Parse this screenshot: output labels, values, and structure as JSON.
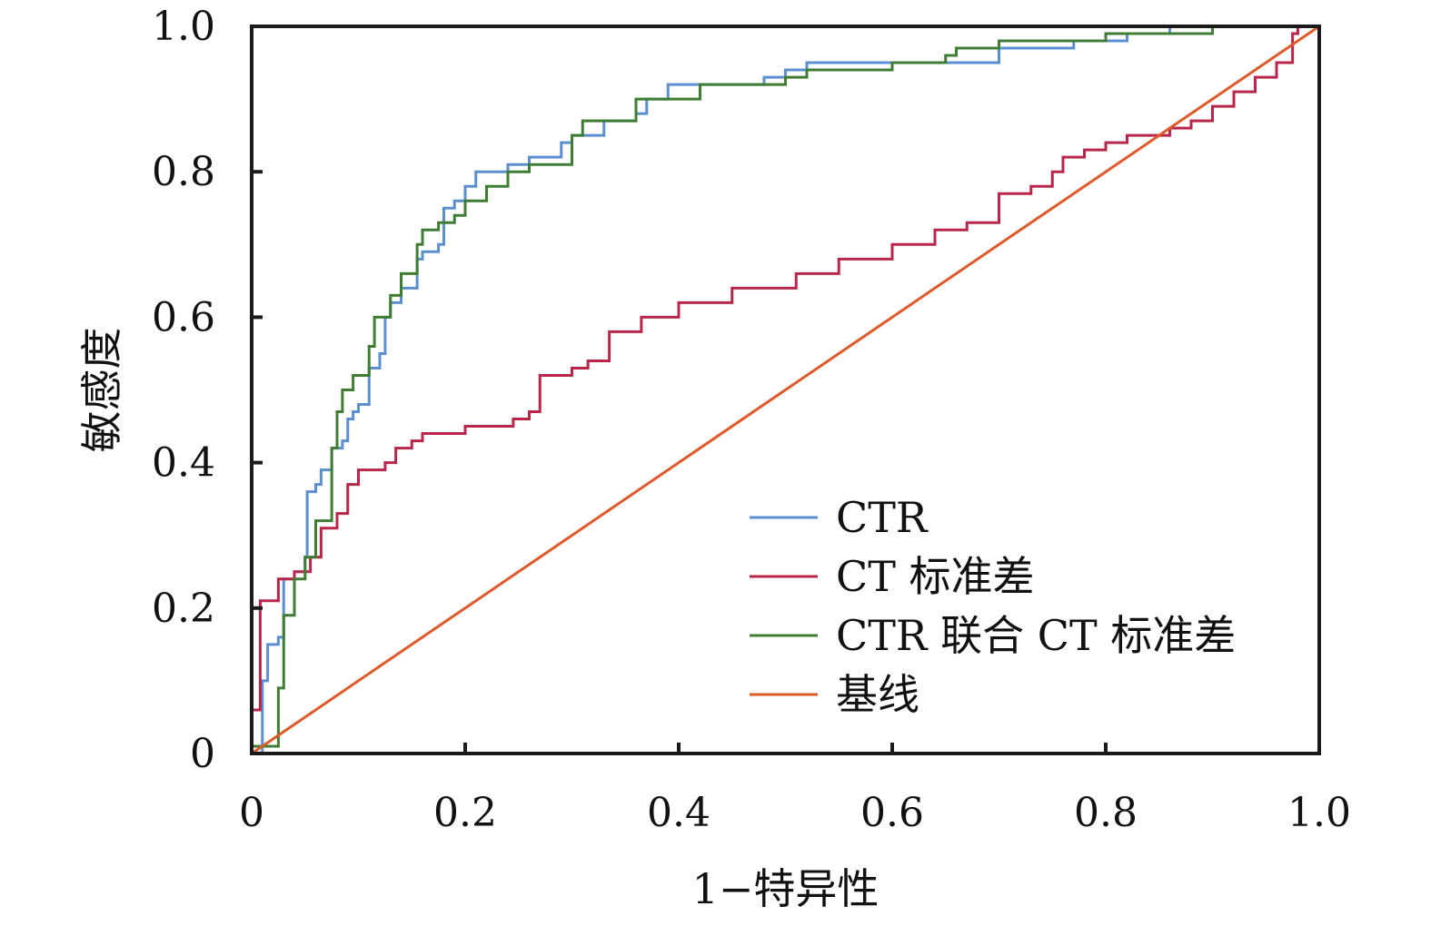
{
  "chart_data": {
    "type": "line",
    "title": "",
    "xlabel": "1−特异性",
    "ylabel": "敏感度",
    "xlim": [
      0,
      1
    ],
    "ylim": [
      0,
      1
    ],
    "grid": false,
    "legend_position": "bottom-right",
    "x_ticks": [
      "0",
      "0.2",
      "0.4",
      "0.6",
      "0.8",
      "1.0"
    ],
    "y_ticks": [
      "0",
      "0.2",
      "0.4",
      "0.6",
      "0.8",
      "1.0"
    ],
    "series": [
      {
        "name": "CTR",
        "color": "#5b8fd0",
        "points": [
          [
            0,
            0
          ],
          [
            0.01,
            0.1
          ],
          [
            0.015,
            0.15
          ],
          [
            0.025,
            0.16
          ],
          [
            0.03,
            0.24
          ],
          [
            0.04,
            0.25
          ],
          [
            0.05,
            0.27
          ],
          [
            0.052,
            0.36
          ],
          [
            0.06,
            0.37
          ],
          [
            0.065,
            0.39
          ],
          [
            0.07,
            0.39
          ],
          [
            0.075,
            0.42
          ],
          [
            0.085,
            0.43
          ],
          [
            0.09,
            0.46
          ],
          [
            0.095,
            0.47
          ],
          [
            0.1,
            0.48
          ],
          [
            0.11,
            0.53
          ],
          [
            0.12,
            0.55
          ],
          [
            0.125,
            0.6
          ],
          [
            0.13,
            0.62
          ],
          [
            0.14,
            0.64
          ],
          [
            0.155,
            0.68
          ],
          [
            0.16,
            0.69
          ],
          [
            0.175,
            0.7
          ],
          [
            0.18,
            0.75
          ],
          [
            0.19,
            0.76
          ],
          [
            0.2,
            0.78
          ],
          [
            0.21,
            0.8
          ],
          [
            0.24,
            0.81
          ],
          [
            0.26,
            0.82
          ],
          [
            0.29,
            0.84
          ],
          [
            0.3,
            0.85
          ],
          [
            0.33,
            0.87
          ],
          [
            0.36,
            0.88
          ],
          [
            0.37,
            0.9
          ],
          [
            0.39,
            0.92
          ],
          [
            0.48,
            0.93
          ],
          [
            0.5,
            0.94
          ],
          [
            0.52,
            0.95
          ],
          [
            0.65,
            0.95
          ],
          [
            0.7,
            0.97
          ],
          [
            0.77,
            0.98
          ],
          [
            0.82,
            0.99
          ],
          [
            0.86,
            1.0
          ],
          [
            1,
            1
          ]
        ]
      },
      {
        "name": "CT 标准差",
        "color": "#b8264a",
        "points": [
          [
            0,
            0
          ],
          [
            0,
            0.06
          ],
          [
            0.008,
            0.21
          ],
          [
            0.025,
            0.24
          ],
          [
            0.04,
            0.25
          ],
          [
            0.055,
            0.27
          ],
          [
            0.065,
            0.31
          ],
          [
            0.08,
            0.33
          ],
          [
            0.09,
            0.37
          ],
          [
            0.1,
            0.39
          ],
          [
            0.125,
            0.4
          ],
          [
            0.135,
            0.42
          ],
          [
            0.15,
            0.43
          ],
          [
            0.16,
            0.44
          ],
          [
            0.2,
            0.45
          ],
          [
            0.245,
            0.46
          ],
          [
            0.26,
            0.47
          ],
          [
            0.27,
            0.52
          ],
          [
            0.3,
            0.53
          ],
          [
            0.315,
            0.54
          ],
          [
            0.335,
            0.58
          ],
          [
            0.365,
            0.6
          ],
          [
            0.4,
            0.62
          ],
          [
            0.45,
            0.64
          ],
          [
            0.51,
            0.66
          ],
          [
            0.55,
            0.68
          ],
          [
            0.6,
            0.7
          ],
          [
            0.64,
            0.72
          ],
          [
            0.67,
            0.73
          ],
          [
            0.7,
            0.77
          ],
          [
            0.73,
            0.78
          ],
          [
            0.75,
            0.8
          ],
          [
            0.76,
            0.82
          ],
          [
            0.78,
            0.83
          ],
          [
            0.8,
            0.84
          ],
          [
            0.82,
            0.85
          ],
          [
            0.86,
            0.86
          ],
          [
            0.88,
            0.87
          ],
          [
            0.9,
            0.89
          ],
          [
            0.92,
            0.91
          ],
          [
            0.94,
            0.93
          ],
          [
            0.96,
            0.95
          ],
          [
            0.975,
            0.99
          ],
          [
            0.98,
            1.0
          ],
          [
            1,
            1
          ]
        ]
      },
      {
        "name": "CTR 联合 CT 标准差",
        "color": "#3f7d33",
        "points": [
          [
            0,
            0
          ],
          [
            0,
            0.01
          ],
          [
            0.02,
            0.01
          ],
          [
            0.025,
            0.09
          ],
          [
            0.03,
            0.19
          ],
          [
            0.04,
            0.24
          ],
          [
            0.05,
            0.27
          ],
          [
            0.06,
            0.32
          ],
          [
            0.07,
            0.32
          ],
          [
            0.075,
            0.42
          ],
          [
            0.08,
            0.47
          ],
          [
            0.085,
            0.5
          ],
          [
            0.095,
            0.52
          ],
          [
            0.11,
            0.56
          ],
          [
            0.115,
            0.6
          ],
          [
            0.13,
            0.63
          ],
          [
            0.14,
            0.66
          ],
          [
            0.155,
            0.7
          ],
          [
            0.16,
            0.72
          ],
          [
            0.175,
            0.73
          ],
          [
            0.19,
            0.74
          ],
          [
            0.2,
            0.76
          ],
          [
            0.22,
            0.78
          ],
          [
            0.24,
            0.8
          ],
          [
            0.26,
            0.81
          ],
          [
            0.3,
            0.85
          ],
          [
            0.31,
            0.87
          ],
          [
            0.36,
            0.9
          ],
          [
            0.42,
            0.92
          ],
          [
            0.5,
            0.93
          ],
          [
            0.52,
            0.94
          ],
          [
            0.6,
            0.95
          ],
          [
            0.65,
            0.96
          ],
          [
            0.66,
            0.97
          ],
          [
            0.7,
            0.98
          ],
          [
            0.8,
            0.99
          ],
          [
            0.9,
            1.0
          ],
          [
            1,
            1
          ]
        ]
      },
      {
        "name": "基线",
        "color": "#de5a2b",
        "points": [
          [
            0,
            0
          ],
          [
            1,
            1
          ]
        ]
      }
    ]
  }
}
